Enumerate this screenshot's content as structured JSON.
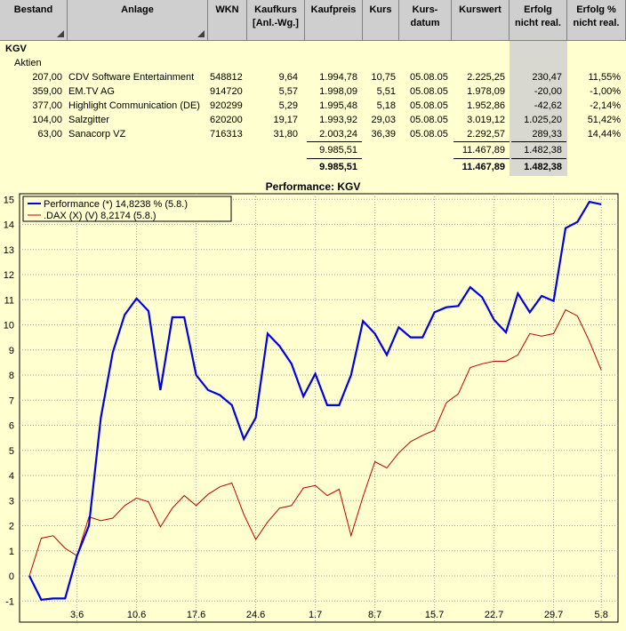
{
  "headers": [
    {
      "label": "Bestand",
      "sort": true
    },
    {
      "label": "Anlage",
      "sort": true
    },
    {
      "label": "WKN",
      "sort": false
    },
    {
      "label": "Kaufkurs\n[Anl.-Wg.]",
      "sort": false
    },
    {
      "label": "Kaufpreis",
      "sort": false
    },
    {
      "label": "Kurs",
      "sort": false
    },
    {
      "label": "Kurs-\ndatum",
      "sort": false
    },
    {
      "label": "Kurswert",
      "sort": false
    },
    {
      "label": "Erfolg\nnicht real.",
      "sort": false
    },
    {
      "label": "Erfolg %\nnicht real.",
      "sort": false
    }
  ],
  "group": "KGV",
  "subgroup": "Aktien",
  "rows": [
    {
      "bestand": "207,00",
      "anlage": "CDV Software Entertainment",
      "wkn": "548812",
      "kaufkurs": "9,64",
      "kaufpreis": "1.994,78",
      "kurs": "10,75",
      "datum": "05.08.05",
      "kurswert": "2.225,25",
      "erfolg": "230,47",
      "erfolg_pct": "11,55%"
    },
    {
      "bestand": "359,00",
      "anlage": "EM.TV AG",
      "wkn": "914720",
      "kaufkurs": "5,57",
      "kaufpreis": "1.998,09",
      "kurs": "5,51",
      "datum": "05.08.05",
      "kurswert": "1.978,09",
      "erfolg": "-20,00",
      "erfolg_pct": "-1,00%"
    },
    {
      "bestand": "377,00",
      "anlage": "Highlight Communication (DE)",
      "wkn": "920299",
      "kaufkurs": "5,29",
      "kaufpreis": "1.995,48",
      "kurs": "5,18",
      "datum": "05.08.05",
      "kurswert": "1.952,86",
      "erfolg": "-42,62",
      "erfolg_pct": "-2,14%"
    },
    {
      "bestand": "104,00",
      "anlage": "Salzgitter",
      "wkn": "620200",
      "kaufkurs": "19,17",
      "kaufpreis": "1.993,92",
      "kurs": "29,03",
      "datum": "05.08.05",
      "kurswert": "3.019,12",
      "erfolg": "1.025,20",
      "erfolg_pct": "51,42%"
    },
    {
      "bestand": "63,00",
      "anlage": "Sanacorp VZ",
      "wkn": "716313",
      "kaufkurs": "31,80",
      "kaufpreis": "2.003,24",
      "kurs": "36,39",
      "datum": "05.08.05",
      "kurswert": "2.292,57",
      "erfolg": "289,33",
      "erfolg_pct": "14,44%"
    }
  ],
  "subtotal": {
    "kaufpreis": "9.985,51",
    "kurswert": "11.467,89",
    "erfolg": "1.482,38"
  },
  "total": {
    "kaufpreis": "9.985,51",
    "kurswert": "11.467,89",
    "erfolg": "1.482,38"
  },
  "colors": {
    "performance": "#0000e0",
    "dax": "#c00000",
    "grid": "#a0a0a0",
    "plot_bg": "#ffffd0",
    "header_bg": "#cfcfcf"
  },
  "chart_data": {
    "type": "line",
    "title": "Performance: KGV",
    "xlabel": "",
    "ylabel": "",
    "x_ticks": [
      "3.6",
      "10.6",
      "17.6",
      "24.6",
      "1.7",
      "8.7",
      "15.7",
      "22.7",
      "29.7",
      "5.8"
    ],
    "ylim": [
      -1,
      15
    ],
    "y_ticks": [
      -1,
      0,
      1,
      2,
      3,
      4,
      5,
      6,
      7,
      8,
      9,
      10,
      11,
      12,
      13,
      14,
      15
    ],
    "grid": true,
    "legend_position": "top-left",
    "series": [
      {
        "name": "Performance (*) 14,8238 % (5.8.)",
        "color": "#0000e0",
        "values": [
          0,
          -0.95,
          -0.9,
          -0.9,
          0.8,
          2.0,
          6.3,
          8.9,
          10.4,
          11.05,
          10.55,
          7.4,
          10.3,
          10.3,
          8.0,
          7.4,
          7.2,
          6.8,
          5.45,
          6.3,
          9.65,
          9.15,
          8.45,
          7.15,
          8.05,
          6.8,
          6.8,
          8.0,
          10.15,
          9.65,
          8.8,
          9.9,
          9.5,
          9.5,
          10.5,
          10.7,
          10.75,
          11.5,
          11.1,
          10.2,
          9.7,
          11.25,
          10.5,
          11.15,
          10.95,
          13.85,
          14.1,
          14.9,
          14.8
        ]
      },
      {
        "name": ".DAX (X) (V) 8,2174 (5.8.)",
        "color": "#c00000",
        "values": [
          0,
          1.5,
          1.6,
          1.1,
          0.8,
          2.35,
          2.2,
          2.3,
          2.8,
          3.1,
          2.95,
          1.95,
          2.7,
          3.2,
          2.8,
          3.25,
          3.55,
          3.7,
          2.45,
          1.45,
          2.15,
          2.7,
          2.8,
          3.5,
          3.6,
          3.2,
          3.45,
          1.6,
          3.15,
          4.55,
          4.3,
          4.9,
          5.35,
          5.6,
          5.8,
          6.9,
          7.25,
          8.3,
          8.45,
          8.55,
          8.55,
          8.8,
          9.65,
          9.55,
          9.65,
          10.6,
          10.35,
          9.35,
          8.2
        ]
      }
    ]
  }
}
